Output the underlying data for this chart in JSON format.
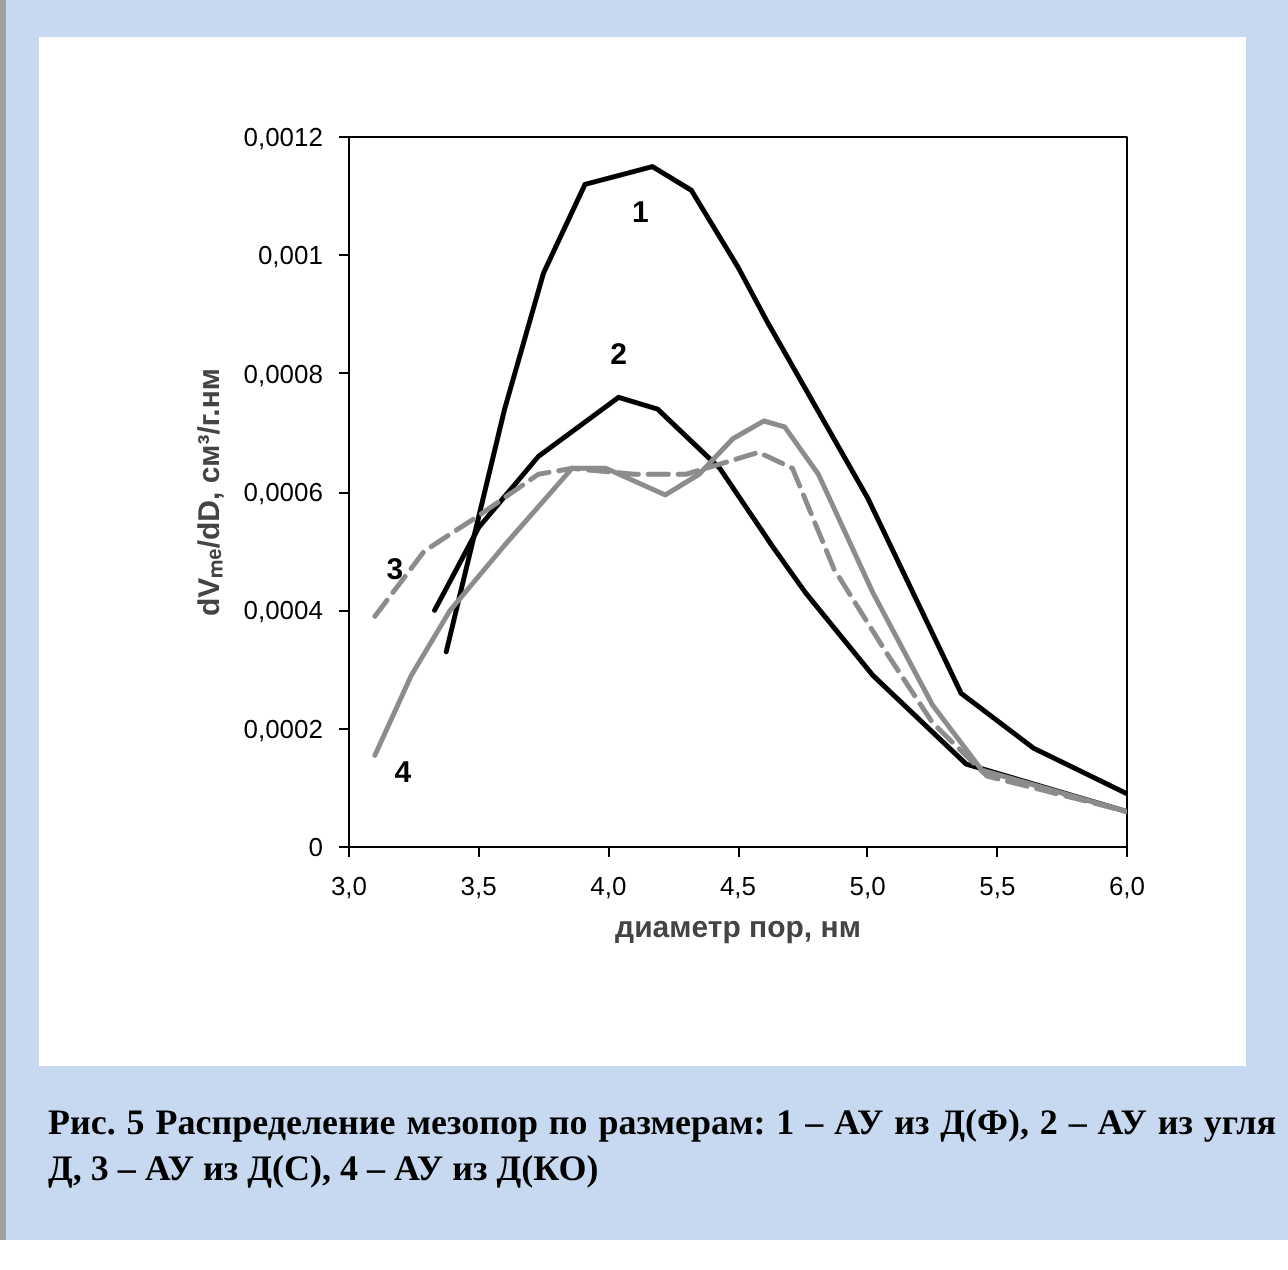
{
  "chart_data": {
    "type": "line",
    "xlabel": "диаметр пор, нм",
    "ylabel": "dVₘₑ/dD, см³/г.нм",
    "xlim": [
      3.0,
      6.0
    ],
    "ylim": [
      0,
      0.0012
    ],
    "xticks": [
      {
        "value": 3.0,
        "label": "3,0"
      },
      {
        "value": 3.5,
        "label": "3,5"
      },
      {
        "value": 4.0,
        "label": "4,0"
      },
      {
        "value": 4.5,
        "label": "4,5"
      },
      {
        "value": 5.0,
        "label": "5,0"
      },
      {
        "value": 5.5,
        "label": "5,5"
      },
      {
        "value": 6.0,
        "label": "6,0"
      }
    ],
    "yticks": [
      0,
      {
        "value": 0.0002,
        "label": "0,0002"
      },
      {
        "value": 0.0004,
        "label": "0,0004"
      },
      {
        "value": 0.0006,
        "label": "0,0006"
      },
      {
        "value": 0.0008,
        "label": "0,0008"
      },
      {
        "value": 0.001,
        "label": "0,001"
      },
      {
        "value": 0.0012,
        "label": "0,0012"
      }
    ],
    "grid": false,
    "marker": "none",
    "series": [
      {
        "name": "1",
        "color": "#000000",
        "line_style": "solid",
        "x": [
          3.375,
          3.6,
          3.75,
          3.91,
          4.17,
          4.32,
          4.5,
          4.61,
          5.0,
          5.36,
          5.64,
          6.0
        ],
        "values": [
          0.00033,
          0.00074,
          0.00097,
          0.00112,
          0.00115,
          0.00111,
          0.00098,
          0.00089,
          0.00059,
          0.00026,
          0.000167,
          9e-05
        ]
      },
      {
        "name": "2",
        "color": "#000000",
        "line_style": "solid",
        "x": [
          3.33,
          3.5,
          3.73,
          4.04,
          4.19,
          4.43,
          4.63,
          4.76,
          5.02,
          5.38,
          6.0
        ],
        "values": [
          0.0004,
          0.00054,
          0.00066,
          0.00076,
          0.00074,
          0.00064,
          0.00051,
          0.00043,
          0.00029,
          0.00014,
          6e-05
        ]
      },
      {
        "name": "3",
        "color": "#8c8c8c",
        "line_style": "dashed",
        "x": [
          3.1,
          3.29,
          3.5,
          3.73,
          3.86,
          4.1,
          4.3,
          4.58,
          4.71,
          4.87,
          5.07,
          5.25,
          5.46,
          6.0
        ],
        "values": [
          0.00039,
          0.0005,
          0.00056,
          0.00063,
          0.00064,
          0.00063,
          0.00063,
          0.000667,
          0.00064,
          0.00047,
          0.00033,
          0.00021,
          0.00012,
          6e-05
        ]
      },
      {
        "name": "4",
        "color": "#8c8c8c",
        "line_style": "solid",
        "x": [
          3.1,
          3.24,
          3.39,
          3.6,
          3.86,
          3.99,
          4.22,
          4.35,
          4.48,
          4.6,
          4.68,
          4.81,
          5.02,
          5.25,
          5.44,
          6.0
        ],
        "values": [
          0.000155,
          0.00029,
          0.0004,
          0.00051,
          0.00064,
          0.00064,
          0.000595,
          0.00063,
          0.00069,
          0.00072,
          0.00071,
          0.00063,
          0.00043,
          0.00024,
          0.00013,
          6e-05
        ]
      }
    ],
    "annotations": [
      "Рис. 5  Распределение мезопор по размерам: 1 – АУ из Д(Ф), 2 – АУ из угля Д, 3 – АУ из Д(С), 4 – АУ из Д(КО)"
    ]
  }
}
